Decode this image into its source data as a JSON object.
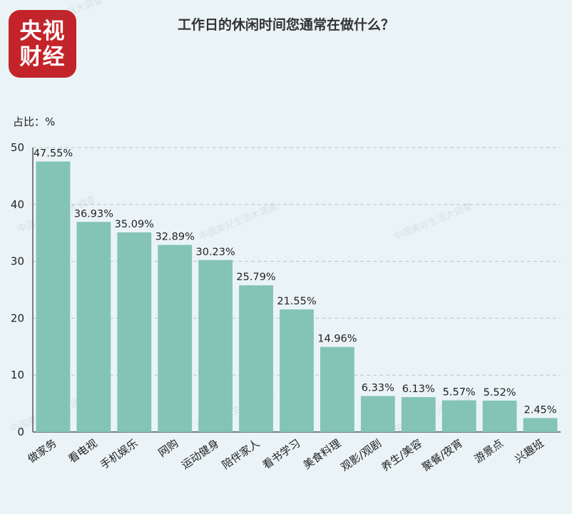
{
  "logo": {
    "text": "央视财经"
  },
  "watermark": "中国美好生活大调查",
  "chart_data": {
    "type": "bar",
    "title": "工作日的休闲时间您通常在做什么？",
    "ylabel": "占比：%",
    "xlabel": "",
    "ylim": [
      0,
      50
    ],
    "yticks": [
      0,
      10,
      20,
      30,
      40,
      50
    ],
    "grid": true,
    "bar_color": "#84c4b5",
    "categories": [
      "做家务",
      "看电视",
      "手机娱乐",
      "网购",
      "运动健身",
      "陪伴家人",
      "看书学习",
      "美食料理",
      "观影/观剧",
      "养生/美容",
      "聚餐/夜宵",
      "游景点",
      "兴趣班"
    ],
    "values": [
      47.55,
      36.93,
      35.09,
      32.89,
      30.23,
      25.79,
      21.55,
      14.96,
      6.33,
      6.13,
      5.57,
      5.52,
      2.45
    ],
    "value_labels": [
      "47.55%",
      "36.93%",
      "35.09%",
      "32.89%",
      "30.23%",
      "25.79%",
      "21.55%",
      "14.96%",
      "6.33%",
      "6.13%",
      "5.57%",
      "5.52%",
      "2.45%"
    ]
  }
}
